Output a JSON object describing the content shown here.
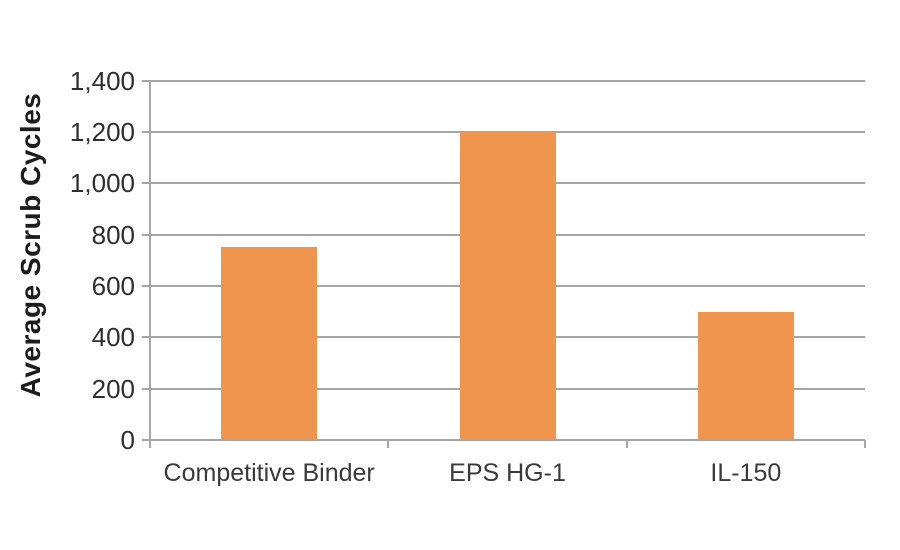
{
  "chart_data": {
    "type": "bar",
    "title": "",
    "categories": [
      "Competitive Binder",
      "EPS HG-1",
      "IL-150"
    ],
    "values": [
      750,
      1200,
      500
    ],
    "xlabel": "",
    "ylabel": "Average Scrub Cycles",
    "ylim": [
      0,
      1400
    ],
    "ytick_interval": 200,
    "ytick_labels": [
      "0",
      "200",
      "400",
      "600",
      "800",
      "1,000",
      "1,200",
      "1,400"
    ],
    "grid": "horizontal-only",
    "legend_position": "none",
    "colors": {
      "bar": "#F0954D",
      "gridline": "#A6A6A6",
      "axis": "#A6A6A6",
      "ytick_text": "#2E2E2E",
      "category_text": "#3A3A3A",
      "ylabel_text": "#1C1C1C",
      "background": "#FFFFFF"
    }
  }
}
